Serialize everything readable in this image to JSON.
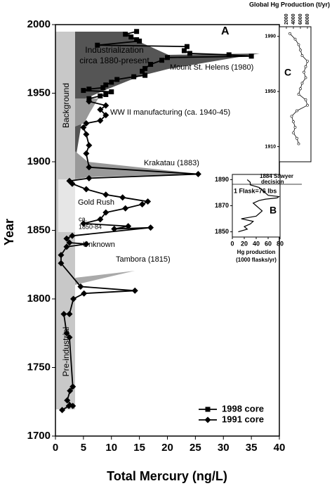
{
  "chart_data": [
    {
      "type": "line",
      "xlabel": "Total Mercury (ng/L)",
      "ylabel": "Year",
      "xlim": [
        0,
        40
      ],
      "xticks": [
        0,
        5,
        10,
        15,
        20,
        25,
        30,
        35,
        40
      ],
      "ylim": [
        1700,
        2000
      ],
      "yticks": [
        1700,
        1750,
        1800,
        1850,
        1900,
        1950,
        2000
      ],
      "legend": "lower right",
      "series": [
        {
          "name": "1998 core",
          "color": "#000000",
          "marker": "square",
          "x": [
            6,
            8,
            9,
            10,
            5,
            6,
            8.5,
            9,
            10,
            11,
            14,
            16,
            15.5,
            16,
            17,
            19,
            20,
            35,
            31,
            24,
            23,
            23.5,
            7.5,
            15,
            14.5,
            13.5,
            12.5,
            14.5
          ],
          "values": [
            1946,
            1948,
            1949,
            1951,
            1952,
            1953,
            1954,
            1956,
            1958,
            1960,
            1962,
            1963,
            1966,
            1968,
            1971,
            1974,
            1976,
            1977,
            1978,
            1979,
            1981,
            1984,
            1985,
            1988,
            1989,
            1991,
            1993,
            1995
          ]
        },
        {
          "name": "1991 core",
          "color": "#000000",
          "marker": "diamond",
          "x": [
            1.2,
            2.4,
            3.1,
            2.1,
            2.6,
            3.1,
            2.5,
            2.0,
            1.5,
            2.5,
            3.2,
            5.1,
            14.2,
            4.5,
            1.0,
            1.0,
            2.0,
            5.5,
            2.5,
            2.0,
            3.0,
            17,
            10.5,
            13,
            5,
            8,
            9,
            12.5,
            15.5,
            16.5,
            12,
            9,
            5.5,
            3,
            2.5,
            6,
            25.5,
            6,
            5.5,
            6,
            5.5,
            5,
            5.5,
            8,
            9,
            8,
            9,
            6
          ],
          "values": [
            1719,
            1722,
            1722,
            1726,
            1733,
            1736,
            1772,
            1775,
            1789,
            1789,
            1800,
            1804,
            1806,
            1809,
            1826,
            1832,
            1838,
            1840,
            1841,
            1844,
            1846,
            1852,
            1851,
            1853,
            1855,
            1858,
            1863,
            1866,
            1869,
            1871,
            1874,
            1876,
            1880,
            1884,
            1886,
            1888,
            1891,
            1896,
            1906,
            1912,
            1920,
            1925,
            1928,
            1930,
            1934,
            1938,
            1941,
            1944
          ]
        }
      ],
      "annotations": [
        "A",
        "Industrialization",
        "circa 1880-present",
        "Mount St. Helens (1980)",
        "WW II manufacturing (ca. 1940-45)",
        "Background",
        "Krakatau (1883)",
        "Gold Rush",
        "ca.",
        "1850-84",
        "Unknown",
        "Tambora (1815)",
        "Pre-industrial"
      ]
    },
    {
      "type": "line",
      "xlabel": [
        "Hg production",
        "(1000 flasks/yr)"
      ],
      "xlim": [
        0,
        80
      ],
      "xticks": [
        0,
        20,
        40,
        60,
        80
      ],
      "ylim": [
        1846,
        1894
      ],
      "yticks": [
        1850,
        1870,
        1890
      ],
      "series": [
        {
          "color": "#000000",
          "x": [
            10,
            25,
            20,
            30,
            35,
            15,
            40,
            45,
            50,
            45,
            40,
            35,
            45,
            55,
            75,
            78,
            60,
            55,
            50,
            45,
            30,
            30,
            25
          ],
          "values": [
            1850,
            1852,
            1854,
            1856,
            1858,
            1860,
            1862,
            1864,
            1866,
            1868,
            1870,
            1872,
            1874,
            1875,
            1876,
            1877,
            1878,
            1880,
            1882,
            1884,
            1886,
            1888,
            1890
          ]
        }
      ],
      "annotations": [
        "1884 Sawyer",
        "decision",
        "1 Flask=76 lbs",
        "B"
      ]
    },
    {
      "type": "line",
      "xlabel": "Global Hg Production (t/yr)",
      "xlim": [
        0,
        9000
      ],
      "xticks": [
        2000,
        4000,
        6000,
        8000
      ],
      "ylim": [
        1899,
        1997
      ],
      "yticks": [
        1910,
        1950,
        1990
      ],
      "series": [
        {
          "color": "#000000",
          "marker": "circle",
          "x": [
            5500,
            5000,
            4000,
            4500,
            4000,
            3500,
            5000,
            8000,
            7500,
            5500,
            6000,
            6500,
            7500,
            7000,
            7500,
            8000,
            6500,
            6000,
            5500,
            4500,
            3000
          ],
          "values": [
            1912,
            1916,
            1920,
            1924,
            1928,
            1932,
            1936,
            1940,
            1944,
            1948,
            1952,
            1956,
            1960,
            1964,
            1968,
            1972,
            1976,
            1980,
            1984,
            1988,
            1992
          ]
        }
      ],
      "annotations": [
        "C"
      ]
    }
  ]
}
